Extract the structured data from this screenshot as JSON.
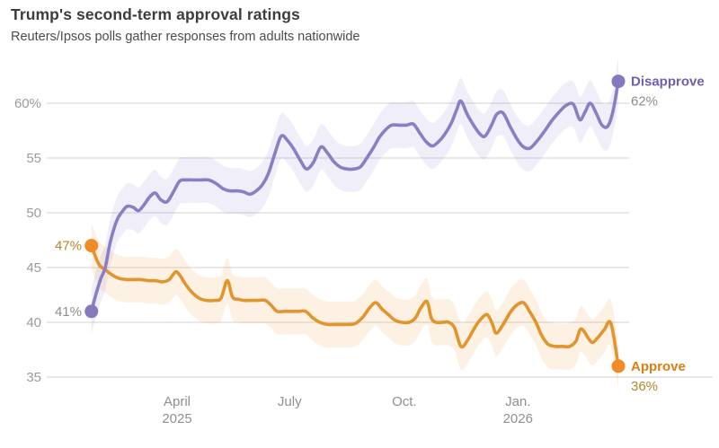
{
  "header": {
    "title": "Trump's second-term approval ratings",
    "subtitle": "Reuters/Ipsos polls gather responses from adults nationwide"
  },
  "chart_data": {
    "type": "line",
    "title": "Trump's second-term approval ratings",
    "subtitle": "Reuters/Ipsos polls gather responses from adults nationwide",
    "grid": true,
    "grid_color": "#d2d2d2",
    "axis_label_color": "#9b9b9b",
    "y_axis": {
      "min": 35,
      "max": 63,
      "ticks": [
        {
          "value": 60,
          "label": "60%"
        },
        {
          "value": 55,
          "label": "55"
        },
        {
          "value": 50,
          "label": "50"
        },
        {
          "value": 45,
          "label": "45"
        },
        {
          "value": 40,
          "label": "40"
        },
        {
          "value": 35,
          "label": "35"
        }
      ]
    },
    "x_axis": {
      "range_note": "t is fractional position from first poll (late Jan. 2025) to last poll (March 2026)",
      "ticks": [
        {
          "t": 0.165,
          "label": "April",
          "sublabel": "2025"
        },
        {
          "t": 0.378,
          "label": "July",
          "sublabel": ""
        },
        {
          "t": 0.595,
          "label": "Oct.",
          "sublabel": ""
        },
        {
          "t": 0.81,
          "label": "Jan.",
          "sublabel": "2026"
        }
      ]
    },
    "series": [
      {
        "name": "Approve",
        "line_color": "#e2942d",
        "dot_color": "#f08b25",
        "band_color": "#f2a751",
        "band_opacity": 0.16,
        "name_color": "#dd7e10",
        "value_color": "#b5872e",
        "start_value": "47%",
        "end_value": "36%",
        "start_value_num": 47,
        "end_value_num": 36,
        "points": [
          [
            0.003,
            47
          ],
          [
            0.017,
            45.3
          ],
          [
            0.029,
            44.8
          ],
          [
            0.043,
            44.3
          ],
          [
            0.056,
            44.0
          ],
          [
            0.07,
            43.9
          ],
          [
            0.083,
            43.9
          ],
          [
            0.097,
            43.9
          ],
          [
            0.111,
            43.8
          ],
          [
            0.124,
            43.8
          ],
          [
            0.138,
            43.7
          ],
          [
            0.15,
            43.9
          ],
          [
            0.162,
            44.6
          ],
          [
            0.17,
            44.3
          ],
          [
            0.182,
            43.4
          ],
          [
            0.194,
            42.7
          ],
          [
            0.207,
            42.2
          ],
          [
            0.221,
            42.0
          ],
          [
            0.235,
            42.0
          ],
          [
            0.248,
            42.2
          ],
          [
            0.26,
            43.8
          ],
          [
            0.27,
            42.3
          ],
          [
            0.282,
            42.1
          ],
          [
            0.291,
            42.0
          ],
          [
            0.304,
            42.0
          ],
          [
            0.318,
            42.0
          ],
          [
            0.332,
            42.0
          ],
          [
            0.344,
            41.5
          ],
          [
            0.354,
            41.0
          ],
          [
            0.367,
            41.0
          ],
          [
            0.381,
            41.0
          ],
          [
            0.395,
            41.0
          ],
          [
            0.408,
            41.0
          ],
          [
            0.422,
            40.4
          ],
          [
            0.435,
            40.0
          ],
          [
            0.449,
            39.8
          ],
          [
            0.463,
            39.8
          ],
          [
            0.476,
            39.8
          ],
          [
            0.49,
            39.8
          ],
          [
            0.503,
            39.9
          ],
          [
            0.517,
            40.5
          ],
          [
            0.529,
            41.3
          ],
          [
            0.541,
            41.8
          ],
          [
            0.553,
            41.2
          ],
          [
            0.565,
            40.7
          ],
          [
            0.577,
            40.2
          ],
          [
            0.59,
            40.0
          ],
          [
            0.604,
            40.0
          ],
          [
            0.616,
            40.4
          ],
          [
            0.626,
            41.3
          ],
          [
            0.638,
            41.9
          ],
          [
            0.646,
            40.4
          ],
          [
            0.655,
            40.0
          ],
          [
            0.667,
            40.0
          ],
          [
            0.679,
            40.0
          ],
          [
            0.69,
            39.5
          ],
          [
            0.702,
            37.8
          ],
          [
            0.714,
            38.3
          ],
          [
            0.728,
            39.5
          ],
          [
            0.74,
            40.3
          ],
          [
            0.752,
            40.7
          ],
          [
            0.762,
            39.8
          ],
          [
            0.769,
            39.0
          ],
          [
            0.782,
            39.8
          ],
          [
            0.794,
            40.8
          ],
          [
            0.806,
            41.5
          ],
          [
            0.82,
            41.8
          ],
          [
            0.832,
            41.0
          ],
          [
            0.844,
            40.0
          ],
          [
            0.855,
            38.8
          ],
          [
            0.867,
            38.0
          ],
          [
            0.881,
            37.8
          ],
          [
            0.894,
            37.8
          ],
          [
            0.908,
            37.8
          ],
          [
            0.92,
            38.3
          ],
          [
            0.93,
            39.4
          ],
          [
            0.949,
            38.2
          ],
          [
            0.961,
            38.6
          ],
          [
            0.973,
            39.3
          ],
          [
            0.986,
            39.9
          ],
          [
            1.0,
            36.0
          ]
        ]
      },
      {
        "name": "Disapprove",
        "line_color": "#8b7ec5",
        "dot_color": "#8678bd",
        "band_color": "#9b8fce",
        "band_opacity": 0.15,
        "name_color": "#6f60ab",
        "value_color": "#8d8d8d",
        "start_value": "41%",
        "end_value": "62%",
        "start_value_num": 41,
        "end_value_num": 62,
        "points": [
          [
            0.003,
            41
          ],
          [
            0.01,
            42.3
          ],
          [
            0.02,
            43.9
          ],
          [
            0.029,
            45.0
          ],
          [
            0.039,
            47.4
          ],
          [
            0.051,
            49.3
          ],
          [
            0.061,
            50.1
          ],
          [
            0.071,
            50.6
          ],
          [
            0.082,
            50.5
          ],
          [
            0.092,
            50.2
          ],
          [
            0.102,
            50.7
          ],
          [
            0.114,
            51.5
          ],
          [
            0.124,
            51.8
          ],
          [
            0.134,
            51.2
          ],
          [
            0.146,
            51.0
          ],
          [
            0.158,
            51.9
          ],
          [
            0.17,
            52.9
          ],
          [
            0.182,
            53.0
          ],
          [
            0.196,
            53.0
          ],
          [
            0.21,
            53.0
          ],
          [
            0.224,
            53.0
          ],
          [
            0.238,
            52.7
          ],
          [
            0.252,
            52.2
          ],
          [
            0.265,
            52.0
          ],
          [
            0.279,
            52.0
          ],
          [
            0.291,
            51.9
          ],
          [
            0.303,
            51.7
          ],
          [
            0.315,
            52.0
          ],
          [
            0.327,
            52.6
          ],
          [
            0.338,
            53.6
          ],
          [
            0.35,
            55.4
          ],
          [
            0.362,
            57.0
          ],
          [
            0.374,
            56.6
          ],
          [
            0.386,
            55.8
          ],
          [
            0.398,
            54.8
          ],
          [
            0.41,
            54.0
          ],
          [
            0.423,
            54.6
          ],
          [
            0.437,
            56.0
          ],
          [
            0.449,
            55.5
          ],
          [
            0.461,
            54.7
          ],
          [
            0.473,
            54.2
          ],
          [
            0.486,
            54.0
          ],
          [
            0.5,
            54.0
          ],
          [
            0.512,
            54.2
          ],
          [
            0.524,
            55.0
          ],
          [
            0.536,
            55.9
          ],
          [
            0.548,
            56.9
          ],
          [
            0.56,
            57.6
          ],
          [
            0.571,
            58.0
          ],
          [
            0.585,
            58.0
          ],
          [
            0.599,
            58.0
          ],
          [
            0.612,
            58.1
          ],
          [
            0.624,
            57.3
          ],
          [
            0.636,
            56.5
          ],
          [
            0.648,
            56.1
          ],
          [
            0.66,
            56.5
          ],
          [
            0.672,
            57.2
          ],
          [
            0.684,
            58.2
          ],
          [
            0.694,
            59.4
          ],
          [
            0.702,
            60.2
          ],
          [
            0.714,
            59.0
          ],
          [
            0.726,
            58.0
          ],
          [
            0.738,
            57.2
          ],
          [
            0.748,
            57.0
          ],
          [
            0.76,
            58.0
          ],
          [
            0.77,
            59.0
          ],
          [
            0.782,
            59.1
          ],
          [
            0.796,
            57.8
          ],
          [
            0.81,
            56.6
          ],
          [
            0.821,
            56.0
          ],
          [
            0.833,
            55.9
          ],
          [
            0.847,
            56.6
          ],
          [
            0.861,
            57.5
          ],
          [
            0.874,
            58.4
          ],
          [
            0.888,
            59.2
          ],
          [
            0.901,
            59.8
          ],
          [
            0.915,
            59.9
          ],
          [
            0.927,
            58.5
          ],
          [
            0.937,
            59.2
          ],
          [
            0.947,
            60.0
          ],
          [
            0.959,
            59.0
          ],
          [
            0.969,
            58.0
          ],
          [
            0.98,
            57.9
          ],
          [
            0.99,
            59.3
          ],
          [
            1.0,
            62.0
          ]
        ]
      }
    ]
  }
}
